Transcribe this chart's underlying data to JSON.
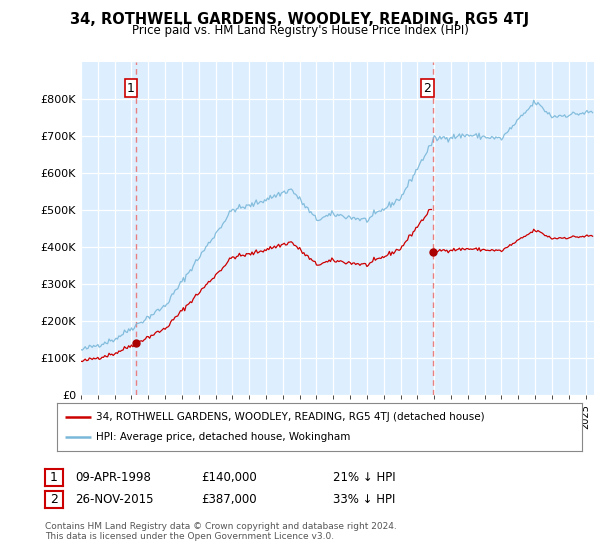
{
  "title": "34, ROTHWELL GARDENS, WOODLEY, READING, RG5 4TJ",
  "subtitle": "Price paid vs. HM Land Registry's House Price Index (HPI)",
  "legend_line1": "34, ROTHWELL GARDENS, WOODLEY, READING, RG5 4TJ (detached house)",
  "legend_line2": "HPI: Average price, detached house, Wokingham",
  "footer": "Contains HM Land Registry data © Crown copyright and database right 2024.\nThis data is licensed under the Open Government Licence v3.0.",
  "sale1_date": "09-APR-1998",
  "sale1_price": "£140,000",
  "sale1_hpi": "21% ↓ HPI",
  "sale2_date": "26-NOV-2015",
  "sale2_price": "£387,000",
  "sale2_hpi": "33% ↓ HPI",
  "sale1_year": 1998.27,
  "sale1_value": 140000,
  "sale2_year": 2015.9,
  "sale2_value": 387000,
  "hpi_color": "#7ab8d9",
  "price_color": "#cc0000",
  "marker_color": "#aa0000",
  "vline_color": "#e88080",
  "background_chart": "#ddeeff",
  "background_fig": "#ffffff",
  "ylim": [
    0,
    900000
  ],
  "xlim_start": 1995,
  "xlim_end": 2025.5,
  "yticks": [
    0,
    100000,
    200000,
    300000,
    400000,
    500000,
    600000,
    700000,
    800000
  ],
  "ytick_labels": [
    "£0",
    "£100K",
    "£200K",
    "£300K",
    "£400K",
    "£500K",
    "£600K",
    "£700K",
    "£800K"
  ]
}
